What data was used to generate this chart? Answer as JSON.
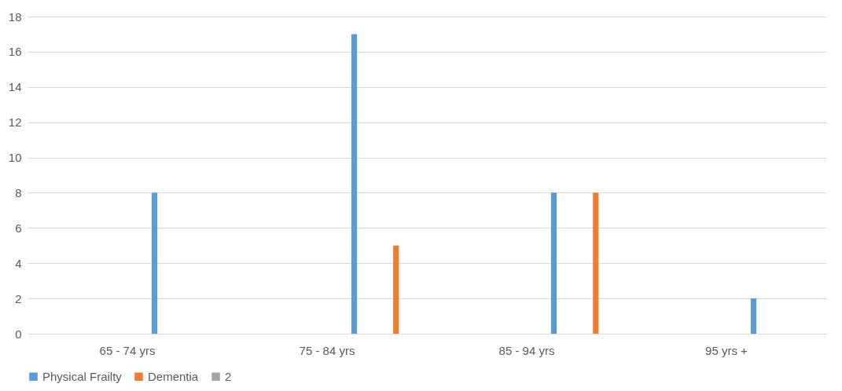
{
  "chart_data": {
    "type": "bar",
    "categories": [
      "65 - 74 yrs",
      "75 - 84 yrs",
      "85 - 94 yrs",
      "95 yrs +"
    ],
    "series": [
      {
        "name": "Physical Frailty",
        "color": "#5b9bd5",
        "values": [
          8,
          17,
          8,
          2
        ]
      },
      {
        "name": "Dementia",
        "color": "#ed7d31",
        "values": [
          null,
          5,
          8,
          null
        ]
      },
      {
        "name": "2",
        "color": "#a5a5a5",
        "values": [
          null,
          null,
          null,
          null
        ]
      }
    ],
    "ylim": [
      0,
      18
    ],
    "yticks": [
      0,
      2,
      4,
      6,
      8,
      10,
      12,
      14,
      16,
      18
    ],
    "grid": "y",
    "legend": "bottom"
  }
}
